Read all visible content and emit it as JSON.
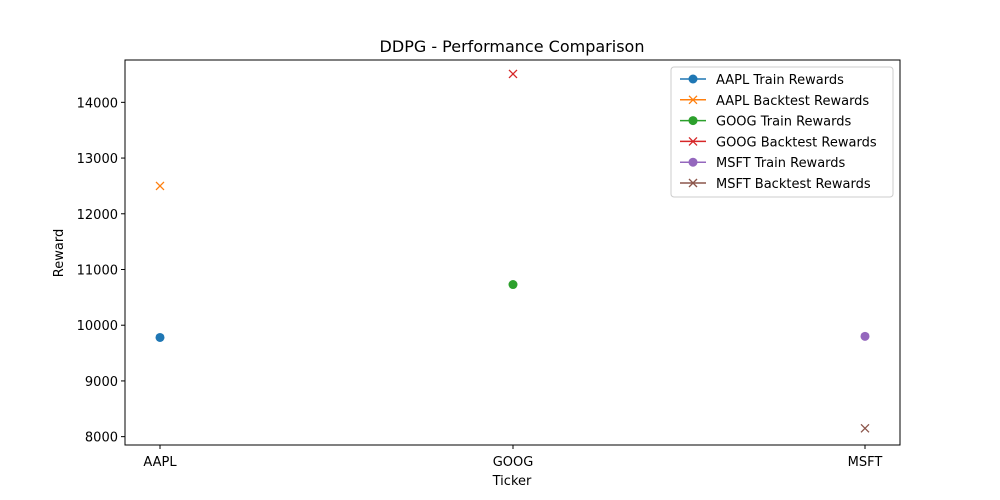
{
  "chart_data": {
    "type": "scatter",
    "title": "DDPG - Performance Comparison",
    "xlabel": "Ticker",
    "ylabel": "Reward",
    "categories": [
      "AAPL",
      "GOOG",
      "MSFT"
    ],
    "ylim": [
      7850,
      14760
    ],
    "yticks": [
      8000,
      9000,
      10000,
      11000,
      12000,
      13000,
      14000
    ],
    "grid": false,
    "legend_position": "top-right",
    "series": [
      {
        "name": "AAPL Train Rewards",
        "color": "#1f77b4",
        "marker": "circle",
        "points": [
          {
            "x": "AAPL",
            "y": 9780
          }
        ]
      },
      {
        "name": "AAPL Backtest Rewards",
        "color": "#ff7f0e",
        "marker": "x",
        "points": [
          {
            "x": "AAPL",
            "y": 12500
          }
        ]
      },
      {
        "name": "GOOG Train Rewards",
        "color": "#2ca02c",
        "marker": "circle",
        "points": [
          {
            "x": "GOOG",
            "y": 10730
          }
        ]
      },
      {
        "name": "GOOG Backtest Rewards",
        "color": "#d62728",
        "marker": "x",
        "points": [
          {
            "x": "GOOG",
            "y": 14510
          }
        ]
      },
      {
        "name": "MSFT Train Rewards",
        "color": "#9467bd",
        "marker": "circle",
        "points": [
          {
            "x": "MSFT",
            "y": 9800
          }
        ]
      },
      {
        "name": "MSFT Backtest Rewards",
        "color": "#8c564b",
        "marker": "x",
        "points": [
          {
            "x": "MSFT",
            "y": 8150
          }
        ]
      }
    ]
  }
}
